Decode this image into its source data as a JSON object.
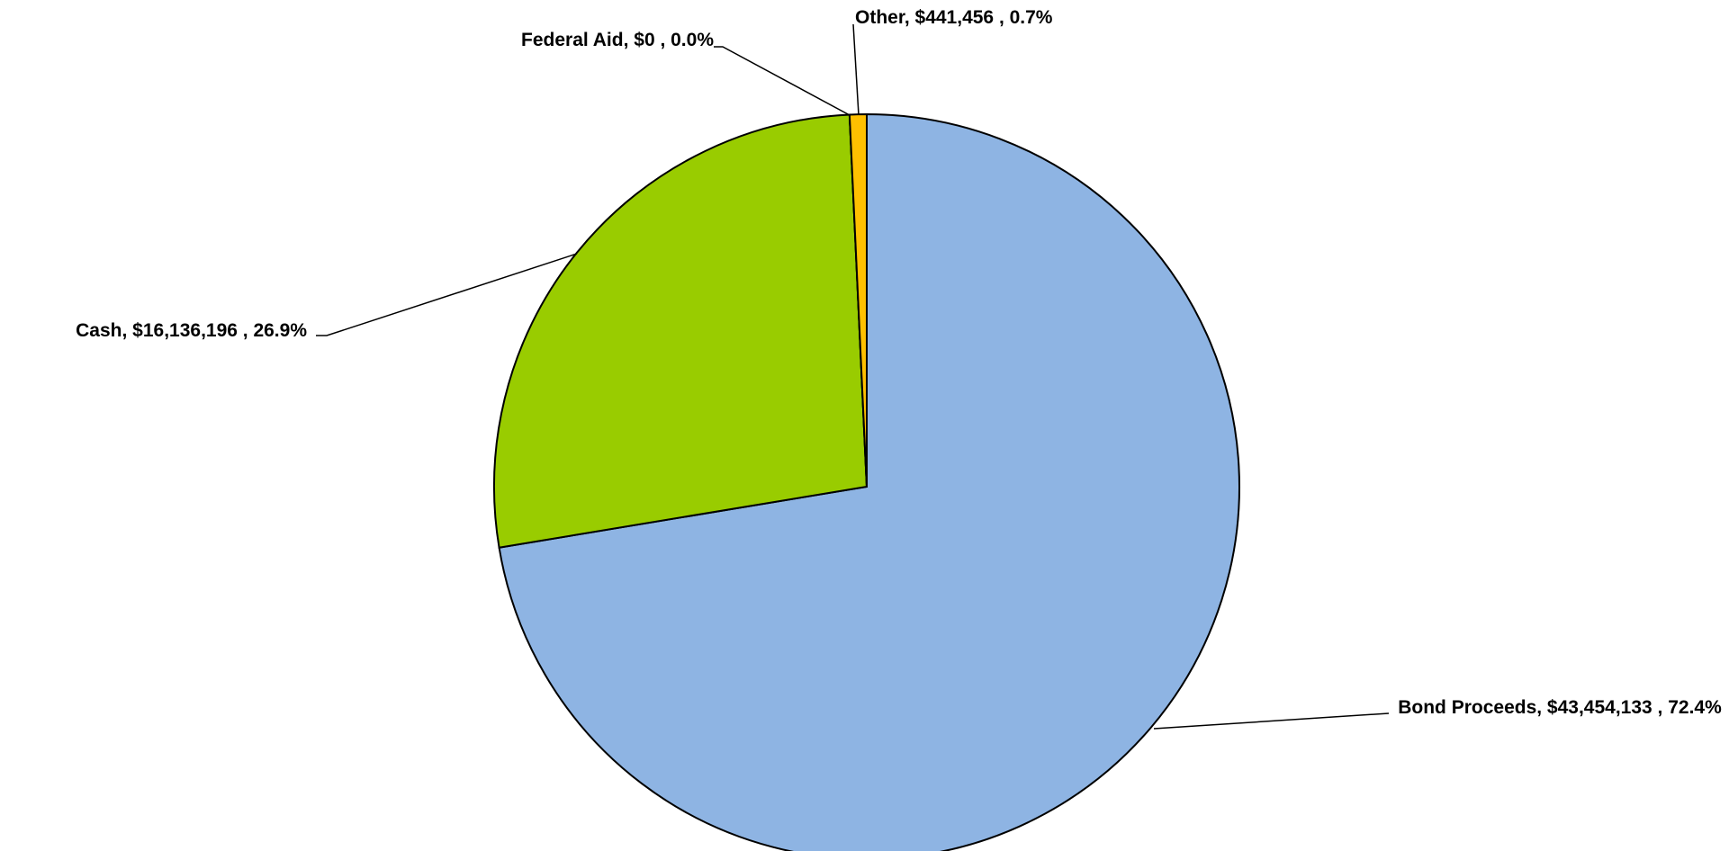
{
  "chart_data": {
    "type": "pie",
    "categories": [
      "Bond Proceeds",
      "Cash",
      "Federal Aid",
      "Other"
    ],
    "values": [
      43454133,
      16136196,
      0,
      441456
    ],
    "labels": [
      "Bond Proceeds, $43,454,133 , 72.4%",
      "Cash, $16,136,196 , 26.9%",
      "Federal Aid, $0 , 0.0%",
      "Other, $441,456 , 0.7%"
    ],
    "colors": [
      "#8eb4e3",
      "#99cc00",
      "#ff0000",
      "#ffc000"
    ]
  }
}
